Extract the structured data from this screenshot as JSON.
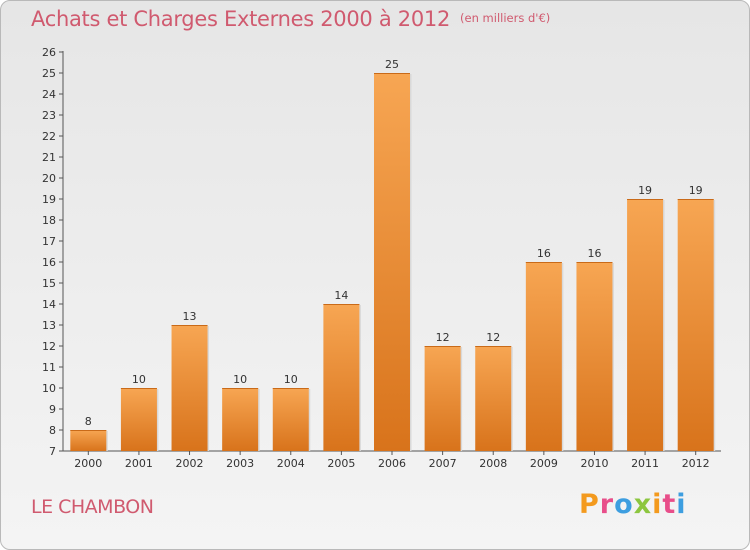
{
  "header": {
    "title": "Achats et Charges Externes 2000 à 2012",
    "unit": "(en milliers d'€)"
  },
  "footer": {
    "commune": "LE CHAMBON",
    "logo_text": "Proxiti"
  },
  "colors": {
    "title": "#d05a6f",
    "bar_top": "#f7a653",
    "bar_bottom": "#d8731b",
    "logo": [
      "#f39a1e",
      "#e84e8a",
      "#3d9ee0",
      "#8cc63f",
      "#f39a1e",
      "#e84e8a",
      "#3d9ee0"
    ]
  },
  "chart_data": {
    "type": "bar",
    "title": "Achats et Charges Externes 2000 à 2012",
    "subtitle": "(en milliers d'€)",
    "xlabel": "",
    "ylabel": "",
    "categories": [
      "2000",
      "2001",
      "2002",
      "2003",
      "2004",
      "2005",
      "2006",
      "2007",
      "2008",
      "2009",
      "2010",
      "2011",
      "2012"
    ],
    "values": [
      8,
      10,
      13,
      10,
      10,
      14,
      25,
      12,
      12,
      16,
      16,
      19,
      19
    ],
    "ylim": [
      7,
      26
    ],
    "yticks": [
      7,
      8,
      9,
      10,
      11,
      12,
      13,
      14,
      15,
      16,
      17,
      18,
      19,
      20,
      21,
      22,
      23,
      24,
      25,
      26
    ],
    "grid": false,
    "legend": "none"
  }
}
